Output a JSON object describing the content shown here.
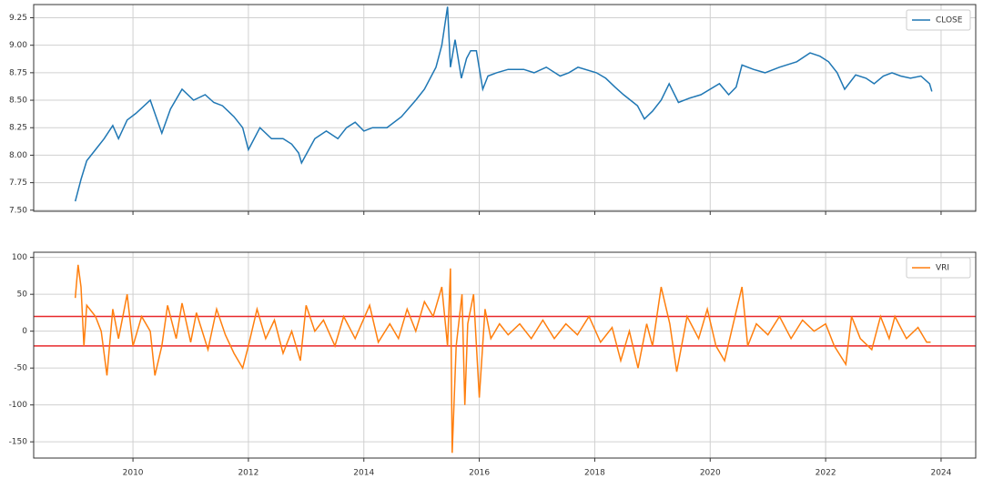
{
  "chart_data": [
    {
      "type": "line",
      "x": [
        2009.0,
        2009.1,
        2009.2,
        2009.35,
        2009.5,
        2009.65,
        2009.75,
        2009.9,
        2010.05,
        2010.3,
        2010.5,
        2010.65,
        2010.85,
        2011.05,
        2011.25,
        2011.4,
        2011.55,
        2011.75,
        2011.9,
        2012.0,
        2012.2,
        2012.4,
        2012.6,
        2012.75,
        2012.87,
        2012.92,
        2013.15,
        2013.35,
        2013.55,
        2013.7,
        2013.85,
        2014.0,
        2014.15,
        2014.4,
        2014.65,
        2014.9,
        2015.05,
        2015.25,
        2015.35,
        2015.45,
        2015.5,
        2015.58,
        2015.69,
        2015.78,
        2015.85,
        2015.95,
        2016.06,
        2016.15,
        2016.3,
        2016.5,
        2016.77,
        2016.95,
        2017.16,
        2017.4,
        2017.55,
        2017.71,
        2018.03,
        2018.19,
        2018.35,
        2018.5,
        2018.74,
        2018.86,
        2019.0,
        2019.15,
        2019.29,
        2019.45,
        2019.65,
        2019.84,
        2020.16,
        2020.32,
        2020.45,
        2020.55,
        2020.75,
        2020.95,
        2021.2,
        2021.5,
        2021.73,
        2021.9,
        2022.05,
        2022.2,
        2022.33,
        2022.52,
        2022.7,
        2022.84,
        2023.0,
        2023.15,
        2023.3,
        2023.47,
        2023.65,
        2023.8,
        2023.84
      ],
      "series": [
        {
          "name": "CLOSE",
          "color": "#1f77b4",
          "values": [
            7.58,
            7.78,
            7.95,
            8.05,
            8.15,
            8.27,
            8.15,
            8.32,
            8.38,
            8.5,
            8.2,
            8.42,
            8.6,
            8.5,
            8.55,
            8.48,
            8.45,
            8.35,
            8.25,
            8.05,
            8.25,
            8.15,
            8.15,
            8.1,
            8.02,
            7.93,
            8.15,
            8.22,
            8.15,
            8.25,
            8.3,
            8.22,
            8.25,
            8.25,
            8.35,
            8.5,
            8.6,
            8.8,
            9.0,
            9.35,
            8.8,
            9.05,
            8.7,
            8.88,
            8.95,
            8.95,
            8.6,
            8.72,
            8.75,
            8.78,
            8.78,
            8.75,
            8.8,
            8.72,
            8.75,
            8.8,
            8.75,
            8.7,
            8.62,
            8.55,
            8.45,
            8.33,
            8.4,
            8.5,
            8.65,
            8.48,
            8.52,
            8.55,
            8.65,
            8.55,
            8.62,
            8.82,
            8.78,
            8.75,
            8.8,
            8.85,
            8.93,
            8.9,
            8.85,
            8.75,
            8.6,
            8.73,
            8.7,
            8.65,
            8.72,
            8.75,
            8.72,
            8.7,
            8.72,
            8.65,
            8.58
          ]
        }
      ],
      "xlim": [
        2008.28,
        2024.6
      ],
      "xticks": [
        2010,
        2012,
        2014,
        2016,
        2018,
        2020,
        2022,
        2024
      ],
      "xticklabels": false,
      "ylim": [
        7.49,
        9.37
      ],
      "yticks": [
        {
          "value": 7.5,
          "label": "7.50"
        },
        {
          "value": 7.75,
          "label": "7.75"
        },
        {
          "value": 8.0,
          "label": "8.00"
        },
        {
          "value": 8.25,
          "label": "8.25"
        },
        {
          "value": 8.5,
          "label": "8.50"
        },
        {
          "value": 8.75,
          "label": "8.75"
        },
        {
          "value": 9.0,
          "label": "9.00"
        },
        {
          "value": 9.25,
          "label": "9.25"
        }
      ],
      "grid": true,
      "legend": "upper right"
    },
    {
      "type": "line",
      "x": [
        2009.0,
        2009.05,
        2009.1,
        2009.15,
        2009.2,
        2009.35,
        2009.45,
        2009.55,
        2009.65,
        2009.75,
        2009.9,
        2010.0,
        2010.15,
        2010.3,
        2010.38,
        2010.5,
        2010.6,
        2010.75,
        2010.85,
        2011.0,
        2011.1,
        2011.3,
        2011.45,
        2011.6,
        2011.75,
        2011.9,
        2012.0,
        2012.15,
        2012.3,
        2012.45,
        2012.6,
        2012.75,
        2012.9,
        2013.0,
        2013.15,
        2013.3,
        2013.5,
        2013.65,
        2013.85,
        2014.1,
        2014.25,
        2014.45,
        2014.6,
        2014.75,
        2014.9,
        2015.05,
        2015.2,
        2015.35,
        2015.45,
        2015.5,
        2015.53,
        2015.6,
        2015.7,
        2015.75,
        2015.8,
        2015.9,
        2016.0,
        2016.1,
        2016.2,
        2016.35,
        2016.5,
        2016.7,
        2016.9,
        2017.1,
        2017.3,
        2017.5,
        2017.7,
        2017.9,
        2018.1,
        2018.3,
        2018.45,
        2018.6,
        2018.75,
        2018.9,
        2019.0,
        2019.15,
        2019.3,
        2019.42,
        2019.6,
        2019.8,
        2019.95,
        2020.1,
        2020.25,
        2020.4,
        2020.55,
        2020.65,
        2020.8,
        2021.0,
        2021.2,
        2021.4,
        2021.6,
        2021.8,
        2022.0,
        2022.15,
        2022.35,
        2022.45,
        2022.6,
        2022.8,
        2022.95,
        2023.1,
        2023.2,
        2023.4,
        2023.6,
        2023.75,
        2023.82
      ],
      "series": [
        {
          "name": "VRI",
          "color": "#ff7f0e",
          "values": [
            45,
            90,
            60,
            -20,
            35,
            20,
            0,
            -60,
            30,
            -10,
            50,
            -20,
            20,
            0,
            -60,
            -20,
            35,
            -10,
            38,
            -15,
            25,
            -25,
            30,
            -5,
            -30,
            -50,
            -20,
            30,
            -10,
            15,
            -30,
            0,
            -40,
            35,
            0,
            15,
            -20,
            20,
            -10,
            35,
            -15,
            10,
            -10,
            30,
            0,
            40,
            20,
            60,
            -20,
            85,
            -165,
            -20,
            50,
            -100,
            10,
            50,
            -90,
            30,
            -10,
            10,
            -5,
            10,
            -10,
            15,
            -10,
            10,
            -5,
            20,
            -15,
            5,
            -40,
            0,
            -50,
            10,
            -20,
            60,
            10,
            -55,
            20,
            -10,
            30,
            -20,
            -40,
            10,
            60,
            -20,
            10,
            -5,
            20,
            -10,
            15,
            0,
            10,
            -20,
            -45,
            20,
            -10,
            -25,
            20,
            -10,
            20,
            -10,
            5,
            -15,
            -15
          ]
        }
      ],
      "hlines": {
        "values": [
          20,
          -20
        ],
        "color": "#e8292b"
      },
      "xlim": [
        2008.28,
        2024.6
      ],
      "xticks": [
        2010,
        2012,
        2014,
        2016,
        2018,
        2020,
        2022,
        2024
      ],
      "ylim": [
        -172,
        107
      ],
      "yticks": [
        100,
        50,
        0,
        -50,
        -100,
        -150
      ],
      "grid": true,
      "legend": "upper right"
    }
  ]
}
